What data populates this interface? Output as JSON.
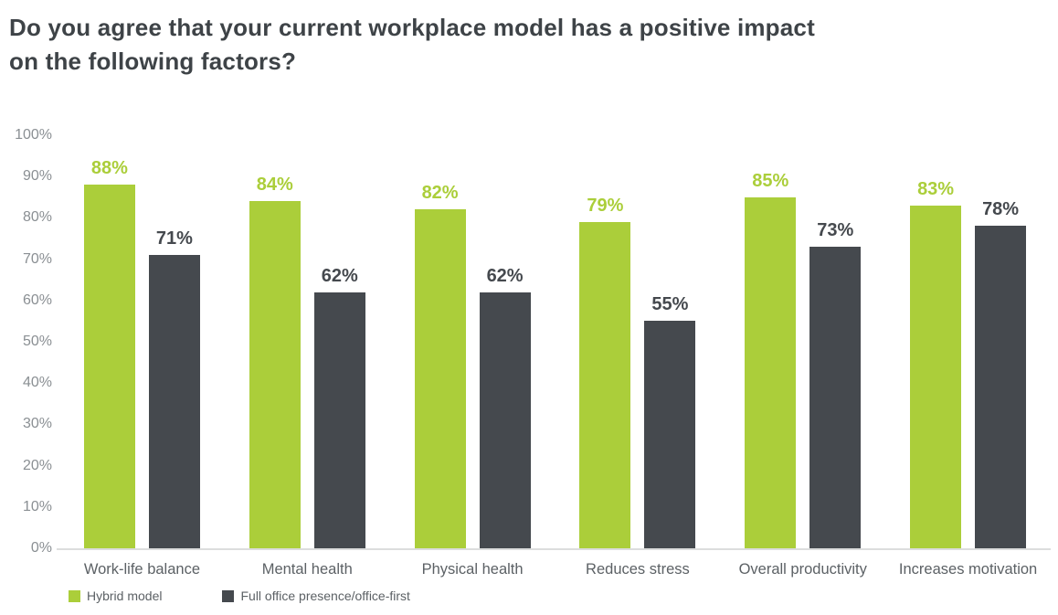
{
  "title": {
    "text": "Do you agree that your current workplace model has a positive impact on the following factors?",
    "line1": "Do you agree that your current workplace model has a positive impact",
    "line2": "on the following factors?"
  },
  "colors": {
    "hybrid": "#abce3a",
    "office": "#45494e",
    "title_text": "#3e4347",
    "ytick_text": "#8a8f93",
    "category_text": "#5c6165",
    "legend_text": "#5c6165",
    "baseline": "#dcdddd"
  },
  "chart_data": {
    "type": "bar",
    "title": "Do you agree that your current workplace model has a positive impact on the following factors?",
    "categories": [
      "Work-life balance",
      "Mental health",
      "Physical health",
      "Reduces stress",
      "Overall productivity",
      "Increases motivation"
    ],
    "series": [
      {
        "name": "Hybrid model",
        "color_key": "hybrid",
        "values": [
          88,
          84,
          82,
          79,
          85,
          83
        ],
        "value_labels": [
          "88%",
          "84%",
          "82%",
          "79%",
          "85%",
          "83%"
        ]
      },
      {
        "name": "Full office presence/office-first",
        "color_key": "office",
        "values": [
          71,
          62,
          62,
          55,
          73,
          78
        ],
        "value_labels": [
          "71%",
          "62%",
          "62%",
          "55%",
          "73%",
          "78%"
        ]
      }
    ],
    "xlabel": "",
    "ylabel": "",
    "ylim": [
      0,
      100
    ],
    "yticks": [
      0,
      10,
      20,
      30,
      40,
      50,
      60,
      70,
      80,
      90,
      100
    ],
    "ytick_labels": [
      "0%",
      "10%",
      "20%",
      "30%",
      "40%",
      "50%",
      "60%",
      "70%",
      "80%",
      "90%",
      "100%"
    ],
    "grid": false,
    "value_labels_position": "above-bars",
    "legend_position": "bottom-left"
  },
  "legend": {
    "items": [
      {
        "label": "Hybrid model",
        "color_key": "hybrid"
      },
      {
        "label": "Full office presence/office-first",
        "color_key": "office"
      }
    ]
  }
}
